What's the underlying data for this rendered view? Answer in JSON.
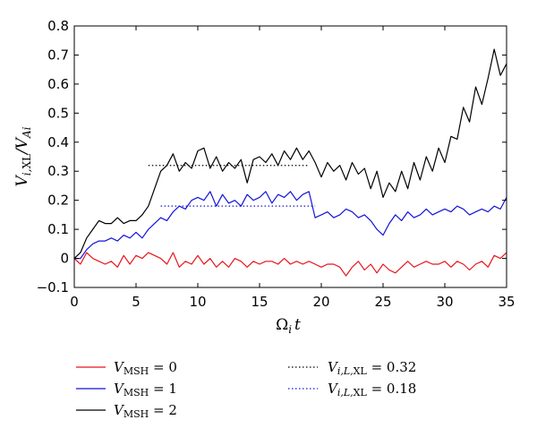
{
  "chart_data": {
    "type": "line",
    "xlabel": "Ω",
    "xlabel_sub": "i",
    "xlabel_tail": "t",
    "ylabel": "V",
    "ylabel_sub1": "i,",
    "ylabel_sub1b": "XL",
    "ylabel_mid": "/V",
    "ylabel_sub2": "Ai",
    "xlim": [
      0,
      35
    ],
    "ylim": [
      -0.1,
      0.8
    ],
    "xticks": [
      0,
      5,
      10,
      15,
      20,
      25,
      30,
      35
    ],
    "yticks": [
      -0.1,
      0,
      0.1,
      0.2,
      0.3,
      0.4,
      0.5,
      0.6,
      0.7,
      0.8
    ],
    "xtick_labels": [
      "0",
      "5",
      "10",
      "15",
      "20",
      "25",
      "30",
      "35"
    ],
    "ytick_labels": [
      "−0.1",
      "0",
      "0.1",
      "0.2",
      "0.3",
      "0.4",
      "0.5",
      "0.6",
      "0.7",
      "0.8"
    ],
    "grid": false,
    "legend_placement": "below",
    "series": [
      {
        "name": "V_MSH = 0",
        "legend_var": "V",
        "legend_sub": "MSH",
        "legend_tail": " = 0",
        "color": "#e8141c",
        "style": "solid",
        "x": [
          0,
          0.5,
          1,
          1.5,
          2,
          2.5,
          3,
          3.5,
          4,
          4.5,
          5,
          5.5,
          6,
          6.5,
          7,
          7.5,
          8,
          8.5,
          9,
          9.5,
          10,
          10.5,
          11,
          11.5,
          12,
          12.5,
          13,
          13.5,
          14,
          14.5,
          15,
          15.5,
          16,
          16.5,
          17,
          17.5,
          18,
          18.5,
          19,
          19.5,
          20,
          20.5,
          21,
          21.5,
          22,
          22.5,
          23,
          23.5,
          24,
          24.5,
          25,
          25.5,
          26,
          26.5,
          27,
          27.5,
          28,
          28.5,
          29,
          29.5,
          30,
          30.5,
          31,
          31.5,
          32,
          32.5,
          33,
          33.5,
          34,
          34.5,
          35
        ],
        "y": [
          0.0,
          -0.02,
          0.02,
          0.0,
          -0.01,
          -0.02,
          -0.01,
          -0.03,
          0.01,
          -0.02,
          0.01,
          0.0,
          0.02,
          0.01,
          0.0,
          -0.02,
          0.02,
          -0.03,
          -0.01,
          -0.02,
          0.01,
          -0.02,
          0.0,
          -0.03,
          -0.01,
          -0.03,
          0.0,
          -0.01,
          -0.03,
          -0.01,
          -0.02,
          -0.01,
          -0.01,
          -0.02,
          0.0,
          -0.02,
          -0.01,
          -0.02,
          -0.01,
          -0.02,
          -0.03,
          -0.02,
          -0.02,
          -0.03,
          -0.06,
          -0.03,
          -0.01,
          -0.04,
          -0.02,
          -0.05,
          -0.02,
          -0.04,
          -0.05,
          -0.03,
          -0.01,
          -0.03,
          -0.02,
          -0.01,
          -0.02,
          -0.02,
          -0.01,
          -0.03,
          -0.01,
          -0.02,
          -0.04,
          -0.02,
          -0.01,
          -0.03,
          0.01,
          0.0,
          0.02
        ]
      },
      {
        "name": "V_MSH = 1",
        "legend_var": "V",
        "legend_sub": "MSH",
        "legend_tail": " = 1",
        "color": "#1414d8",
        "style": "solid",
        "x": [
          0,
          0.5,
          1,
          1.5,
          2,
          2.5,
          3,
          3.5,
          4,
          4.5,
          5,
          5.5,
          6,
          6.5,
          7,
          7.5,
          8,
          8.5,
          9,
          9.5,
          10,
          10.5,
          11,
          11.5,
          12,
          12.5,
          13,
          13.5,
          14,
          14.5,
          15,
          15.5,
          16,
          16.5,
          17,
          17.5,
          18,
          18.5,
          19,
          19.5,
          20,
          20.5,
          21,
          21.5,
          22,
          22.5,
          23,
          23.5,
          24,
          24.5,
          25,
          25.5,
          26,
          26.5,
          27,
          27.5,
          28,
          28.5,
          29,
          29.5,
          30,
          30.5,
          31,
          31.5,
          32,
          32.5,
          33,
          33.5,
          34,
          34.5,
          35
        ],
        "y": [
          0.0,
          0.0,
          0.03,
          0.05,
          0.06,
          0.06,
          0.07,
          0.06,
          0.08,
          0.07,
          0.09,
          0.07,
          0.1,
          0.12,
          0.14,
          0.13,
          0.16,
          0.18,
          0.17,
          0.2,
          0.21,
          0.2,
          0.23,
          0.18,
          0.22,
          0.19,
          0.2,
          0.18,
          0.22,
          0.2,
          0.21,
          0.23,
          0.19,
          0.22,
          0.21,
          0.23,
          0.2,
          0.22,
          0.23,
          0.14,
          0.15,
          0.16,
          0.14,
          0.15,
          0.17,
          0.16,
          0.14,
          0.15,
          0.13,
          0.1,
          0.08,
          0.12,
          0.15,
          0.13,
          0.16,
          0.14,
          0.15,
          0.17,
          0.15,
          0.16,
          0.17,
          0.16,
          0.18,
          0.17,
          0.15,
          0.16,
          0.17,
          0.16,
          0.18,
          0.17,
          0.21
        ]
      },
      {
        "name": "V_MSH = 2",
        "legend_var": "V",
        "legend_sub": "MSH",
        "legend_tail": " = 2",
        "color": "#000000",
        "style": "solid",
        "x": [
          0,
          0.5,
          1,
          1.5,
          2,
          2.5,
          3,
          3.5,
          4,
          4.5,
          5,
          5.5,
          6,
          6.5,
          7,
          7.5,
          8,
          8.5,
          9,
          9.5,
          10,
          10.5,
          11,
          11.5,
          12,
          12.5,
          13,
          13.5,
          14,
          14.5,
          15,
          15.5,
          16,
          16.5,
          17,
          17.5,
          18,
          18.5,
          19,
          19.5,
          20,
          20.5,
          21,
          21.5,
          22,
          22.5,
          23,
          23.5,
          24,
          24.5,
          25,
          25.5,
          26,
          26.5,
          27,
          27.5,
          28,
          28.5,
          29,
          29.5,
          30,
          30.5,
          31,
          31.5,
          32,
          32.5,
          33,
          33.5,
          34,
          34.5,
          35
        ],
        "y": [
          0.0,
          0.02,
          0.07,
          0.1,
          0.13,
          0.12,
          0.12,
          0.14,
          0.12,
          0.13,
          0.13,
          0.15,
          0.18,
          0.24,
          0.3,
          0.32,
          0.36,
          0.3,
          0.33,
          0.31,
          0.37,
          0.38,
          0.31,
          0.35,
          0.3,
          0.33,
          0.31,
          0.34,
          0.26,
          0.34,
          0.35,
          0.33,
          0.36,
          0.32,
          0.37,
          0.34,
          0.38,
          0.34,
          0.37,
          0.33,
          0.28,
          0.33,
          0.3,
          0.32,
          0.27,
          0.33,
          0.29,
          0.31,
          0.24,
          0.3,
          0.21,
          0.26,
          0.23,
          0.3,
          0.24,
          0.33,
          0.27,
          0.35,
          0.3,
          0.38,
          0.33,
          0.42,
          0.41,
          0.52,
          0.47,
          0.59,
          0.53,
          0.62,
          0.72,
          0.63,
          0.67
        ]
      }
    ],
    "reference_lines": [
      {
        "name": "V_i,L,XL = 0.32",
        "legend_var": "V",
        "legend_sub": "i,L,",
        "legend_sub_b": "XL",
        "legend_tail": " = 0.32",
        "color": "#000000",
        "style": "dotted",
        "y": 0.32,
        "x_range": [
          6.0,
          19.0
        ]
      },
      {
        "name": "V_i,L,XL = 0.18",
        "legend_var": "V",
        "legend_sub": "i,L,",
        "legend_sub_b": "XL",
        "legend_tail": " = 0.18",
        "color": "#1414d8",
        "style": "dotted",
        "y": 0.18,
        "x_range": [
          7.0,
          19.5
        ]
      }
    ]
  }
}
